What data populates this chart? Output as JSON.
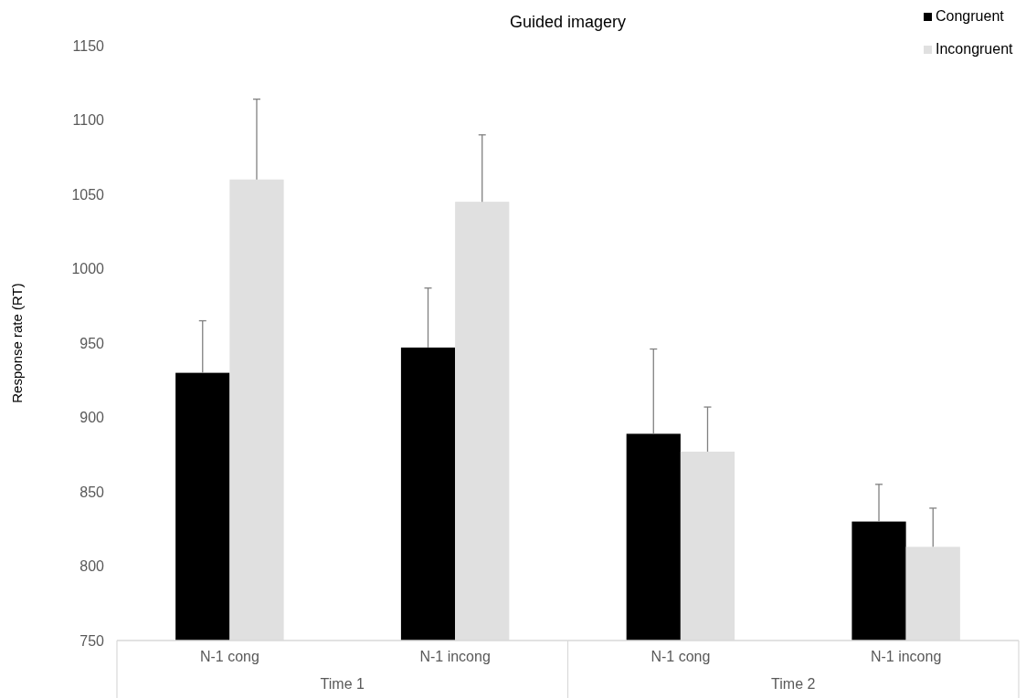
{
  "chart_data": {
    "type": "bar",
    "title": "Guided imagery",
    "ylabel": "Response rate (RT)",
    "categories": [
      "N-1 cong",
      "N-1 incong",
      "N-1 cong",
      "N-1 incong"
    ],
    "series": [
      {
        "name": "Congruent",
        "color": "#000000",
        "values": [
          930,
          947,
          889,
          830
        ],
        "errors": [
          [
            930,
            965
          ],
          [
            947,
            987
          ],
          [
            889,
            946
          ],
          [
            830,
            855
          ]
        ]
      },
      {
        "name": "Incongruent",
        "color": "#e0e0e0",
        "values": [
          1060,
          1045,
          877,
          813
        ],
        "errors": [
          [
            1060,
            1114
          ],
          [
            1045,
            1090
          ],
          [
            877,
            907
          ],
          [
            813,
            839
          ]
        ]
      }
    ],
    "ylim": [
      750,
      1150
    ],
    "yticks": [
      750,
      800,
      850,
      900,
      950,
      1000,
      1050,
      1100,
      1150
    ],
    "grid": false,
    "legend": "top right",
    "annotations": [
      "Time 1",
      "Time 2"
    ]
  }
}
